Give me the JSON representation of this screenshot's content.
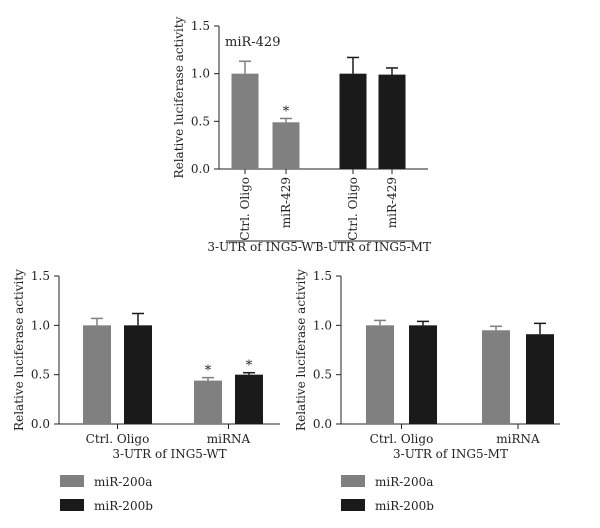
{
  "chart_data": [
    {
      "type": "bar",
      "annotation": "miR-429",
      "ylabel": "Relative luciferase activity",
      "ylim": [
        0,
        1.5
      ],
      "yticks": [
        "0.0",
        "0.5",
        "1.0",
        "1.5"
      ],
      "groups": [
        {
          "label": "3-UTR of ING5-WT",
          "bars": [
            {
              "label": "Ctrl. Oligo",
              "value": 1.0,
              "err": 0.13,
              "color": "#808080",
              "star": ""
            },
            {
              "label": "miR-429",
              "value": 0.49,
              "err": 0.04,
              "color": "#808080",
              "star": "*"
            }
          ]
        },
        {
          "label": "3-UTR of ING5-MT",
          "bars": [
            {
              "label": "Ctrl. Oligo",
              "value": 1.0,
              "err": 0.17,
              "color": "#1a1a1a",
              "star": ""
            },
            {
              "label": "miR-429",
              "value": 0.99,
              "err": 0.07,
              "color": "#1a1a1a",
              "star": ""
            }
          ]
        }
      ]
    },
    {
      "type": "bar",
      "ylabel": "Relative luciferase activity",
      "xlabel": "3-UTR of ING5-WT",
      "ylim": [
        0,
        1.5
      ],
      "yticks": [
        "0.0",
        "0.5",
        "1.0",
        "1.5"
      ],
      "categories": [
        "Ctrl. Oligo",
        "miRNA"
      ],
      "series": [
        {
          "name": "miR-200a",
          "color": "#808080",
          "values": [
            1.0,
            0.44
          ],
          "errors": [
            0.07,
            0.03
          ],
          "stars": [
            "",
            "*"
          ]
        },
        {
          "name": "miR-200b",
          "color": "#1a1a1a",
          "values": [
            1.0,
            0.5
          ],
          "errors": [
            0.12,
            0.02
          ],
          "stars": [
            "",
            "*"
          ]
        }
      ]
    },
    {
      "type": "bar",
      "ylabel": "Relative luciferase activity",
      "xlabel": "3-UTR of ING5-MT",
      "ylim": [
        0,
        1.5
      ],
      "yticks": [
        "0.0",
        "0.5",
        "1.0",
        "1.5"
      ],
      "categories": [
        "Ctrl. Oligo",
        "miRNA"
      ],
      "series": [
        {
          "name": "miR-200a",
          "color": "#808080",
          "values": [
            1.0,
            0.95
          ],
          "errors": [
            0.05,
            0.04
          ],
          "stars": [
            "",
            ""
          ]
        },
        {
          "name": "miR-200b",
          "color": "#1a1a1a",
          "values": [
            1.0,
            0.91
          ],
          "errors": [
            0.04,
            0.11
          ],
          "stars": [
            "",
            ""
          ]
        }
      ]
    }
  ]
}
